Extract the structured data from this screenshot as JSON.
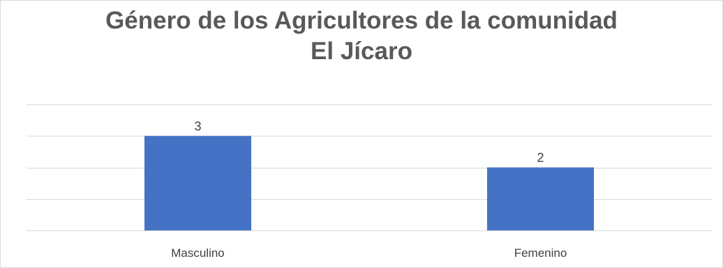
{
  "chart_data": {
    "type": "bar",
    "title_lines": [
      "Género de los Agricultores de la comunidad",
      "El Jícaro"
    ],
    "categories": [
      "Masculino",
      "Femenino"
    ],
    "values": [
      3,
      2
    ],
    "data_labels": [
      "3",
      "2"
    ],
    "ylim": [
      0,
      4
    ],
    "grid": true,
    "bar_color": "#4472c4",
    "gridline_color": "#d9d9d9",
    "xlabel": "",
    "ylabel": ""
  }
}
